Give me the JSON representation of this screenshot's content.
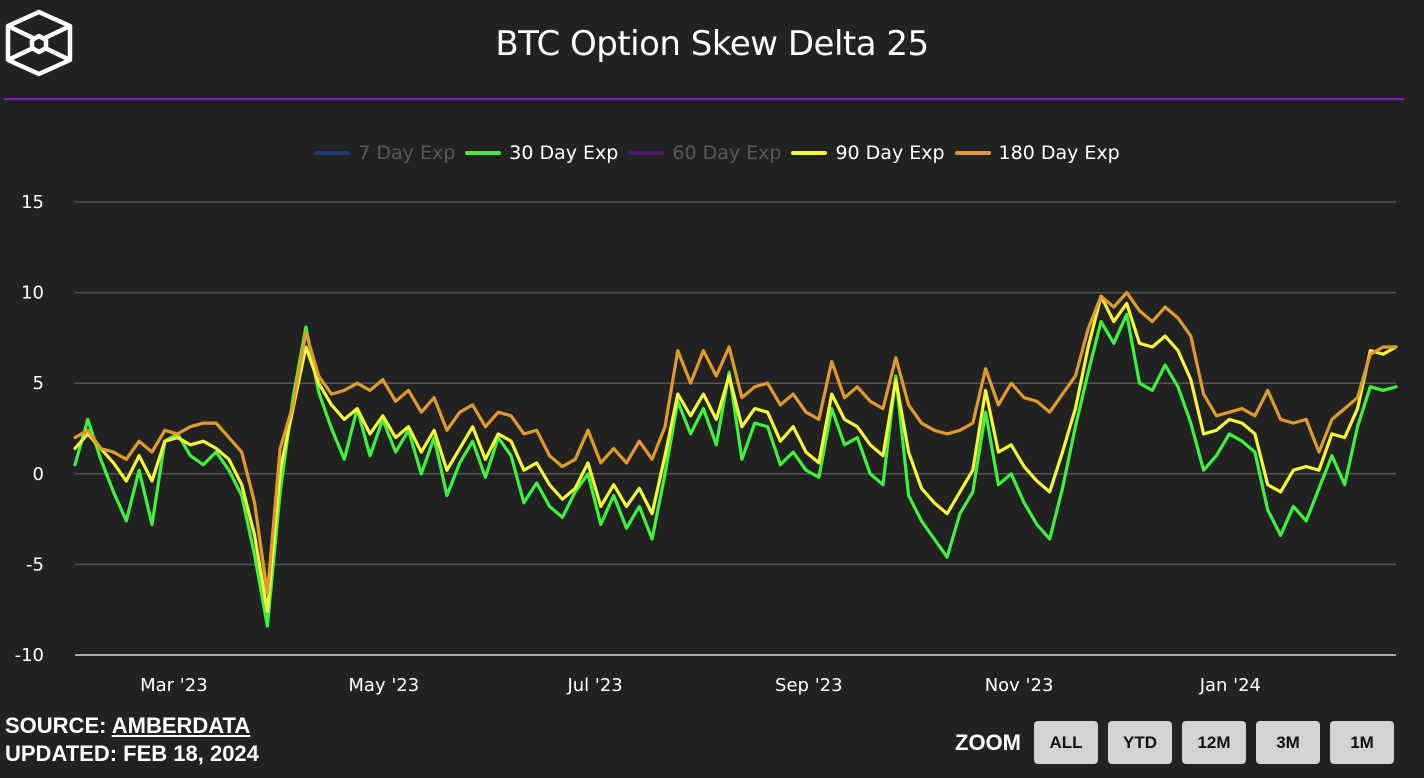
{
  "header": {
    "title": "BTC Option Skew Delta 25",
    "logo": "cube-logo-icon"
  },
  "colors": {
    "background": "#222222",
    "divider": "#8a1ecf",
    "grid": "#555555"
  },
  "footer": {
    "source_label": "SOURCE:",
    "source_link": "AMBERDATA",
    "updated_label": "UPDATED:",
    "updated_value": "FEB 18, 2024"
  },
  "zoom": {
    "label": "ZOOM",
    "buttons": [
      "ALL",
      "YTD",
      "12M",
      "3M",
      "1M"
    ]
  },
  "chart_data": {
    "type": "line",
    "title": "BTC Option Skew Delta 25",
    "xlabel": "",
    "ylabel": "",
    "ylim": [
      -10,
      15
    ],
    "yticks": [
      15,
      10,
      5,
      0,
      -5,
      -10
    ],
    "xrange_days": [
      0,
      382
    ],
    "x_start_date": "2023-02-01",
    "xticks": [
      {
        "label": "Mar '23",
        "day": 28.6
      },
      {
        "label": "May '23",
        "day": 89.3
      },
      {
        "label": "Jul '23",
        "day": 150.4
      },
      {
        "label": "Sep '23",
        "day": 212.2
      },
      {
        "label": "Nov '23",
        "day": 273.0
      },
      {
        "label": "Jan '24",
        "day": 334.1
      }
    ],
    "grid": true,
    "legend_position": "top-center",
    "x_step_days": 4,
    "series": [
      {
        "name": "7 Day Exp",
        "color": "#1f3a78",
        "visible": false,
        "values": []
      },
      {
        "name": "30 Day Exp",
        "color": "#3ef23e",
        "visible": true,
        "values": [
          0.5,
          3.0,
          0.8,
          -1.0,
          -2.6,
          0.2,
          -2.8,
          1.8,
          2.2,
          1.0,
          0.5,
          1.2,
          0.2,
          -1.2,
          -4.5,
          -8.4,
          -1.0,
          4.2,
          8.1,
          4.5,
          2.5,
          0.8,
          3.6,
          1.0,
          3.0,
          1.2,
          2.4,
          0.0,
          2.0,
          -1.2,
          0.6,
          1.8,
          -0.2,
          2.0,
          1.0,
          -1.6,
          -0.5,
          -1.8,
          -2.4,
          -1.0,
          0.0,
          -2.8,
          -1.2,
          -3.0,
          -1.8,
          -3.6,
          0.0,
          4.0,
          2.2,
          3.6,
          1.6,
          5.6,
          0.8,
          2.8,
          2.6,
          0.5,
          1.2,
          0.2,
          -0.2,
          3.6,
          1.6,
          2.0,
          0.0,
          -0.6,
          5.4,
          -1.2,
          -2.6,
          -3.6,
          -4.6,
          -2.2,
          -1.0,
          3.4,
          -0.6,
          0.0,
          -1.6,
          -2.8,
          -3.6,
          -0.8,
          2.6,
          5.6,
          8.4,
          7.2,
          8.8,
          5.0,
          4.6,
          6.0,
          4.8,
          2.8,
          0.2,
          1.0,
          2.2,
          1.8,
          1.2,
          -2.0,
          -3.4,
          -1.8,
          -2.6,
          -0.8,
          1.0,
          -0.6,
          2.6,
          4.8,
          4.6,
          4.8
        ]
      },
      {
        "name": "60 Day Exp",
        "color": "#4a1a6e",
        "visible": false,
        "values": []
      },
      {
        "name": "90 Day Exp",
        "color": "#f5f53a",
        "visible": true,
        "values": [
          1.4,
          2.2,
          1.4,
          0.6,
          -0.4,
          1.0,
          -0.4,
          1.8,
          2.0,
          1.6,
          1.8,
          1.4,
          0.8,
          -0.6,
          -3.4,
          -7.6,
          0.2,
          3.6,
          7.0,
          5.0,
          3.8,
          3.0,
          3.6,
          2.2,
          3.2,
          2.0,
          2.6,
          1.2,
          2.4,
          0.2,
          1.4,
          2.6,
          0.8,
          2.2,
          1.8,
          0.2,
          0.6,
          -0.6,
          -1.4,
          -0.8,
          0.6,
          -1.8,
          -0.6,
          -1.8,
          -0.8,
          -2.2,
          1.0,
          4.4,
          3.2,
          4.4,
          3.0,
          5.4,
          2.6,
          3.6,
          3.4,
          1.8,
          2.6,
          1.2,
          0.6,
          4.4,
          3.0,
          2.6,
          1.6,
          1.0,
          5.2,
          1.2,
          -0.8,
          -1.6,
          -2.2,
          -1.0,
          0.2,
          4.6,
          1.2,
          1.6,
          0.4,
          -0.4,
          -1.0,
          1.2,
          3.6,
          7.0,
          9.8,
          8.4,
          9.4,
          7.2,
          7.0,
          7.6,
          6.8,
          5.2,
          2.2,
          2.4,
          3.0,
          2.8,
          2.2,
          -0.6,
          -1.0,
          0.2,
          0.4,
          0.2,
          2.2,
          2.0,
          3.6,
          6.8,
          6.6,
          7.0
        ]
      },
      {
        "name": "180 Day Exp",
        "color": "#e09b2d",
        "visible": true,
        "values": [
          2.0,
          2.4,
          1.4,
          1.2,
          0.8,
          1.8,
          1.2,
          2.4,
          2.2,
          2.6,
          2.8,
          2.8,
          2.0,
          1.2,
          -1.6,
          -6.6,
          1.4,
          3.8,
          7.8,
          5.4,
          4.4,
          4.6,
          5.0,
          4.6,
          5.2,
          4.0,
          4.6,
          3.4,
          4.2,
          2.4,
          3.4,
          3.8,
          2.6,
          3.4,
          3.2,
          2.2,
          2.4,
          1.0,
          0.4,
          0.8,
          2.4,
          0.6,
          1.4,
          0.6,
          1.8,
          0.8,
          2.6,
          6.8,
          5.0,
          6.8,
          5.4,
          7.0,
          4.2,
          4.8,
          5.0,
          3.8,
          4.4,
          3.4,
          3.0,
          6.2,
          4.2,
          4.8,
          4.0,
          3.6,
          6.4,
          3.8,
          2.8,
          2.4,
          2.2,
          2.4,
          2.8,
          5.8,
          3.8,
          5.0,
          4.2,
          4.0,
          3.4,
          4.4,
          5.4,
          8.0,
          9.8,
          9.2,
          10.0,
          9.0,
          8.4,
          9.2,
          8.6,
          7.6,
          4.4,
          3.2,
          3.4,
          3.6,
          3.2,
          4.6,
          3.0,
          2.8,
          3.0,
          1.2,
          3.0,
          3.6,
          4.2,
          6.6,
          7.0,
          7.0
        ]
      }
    ]
  }
}
